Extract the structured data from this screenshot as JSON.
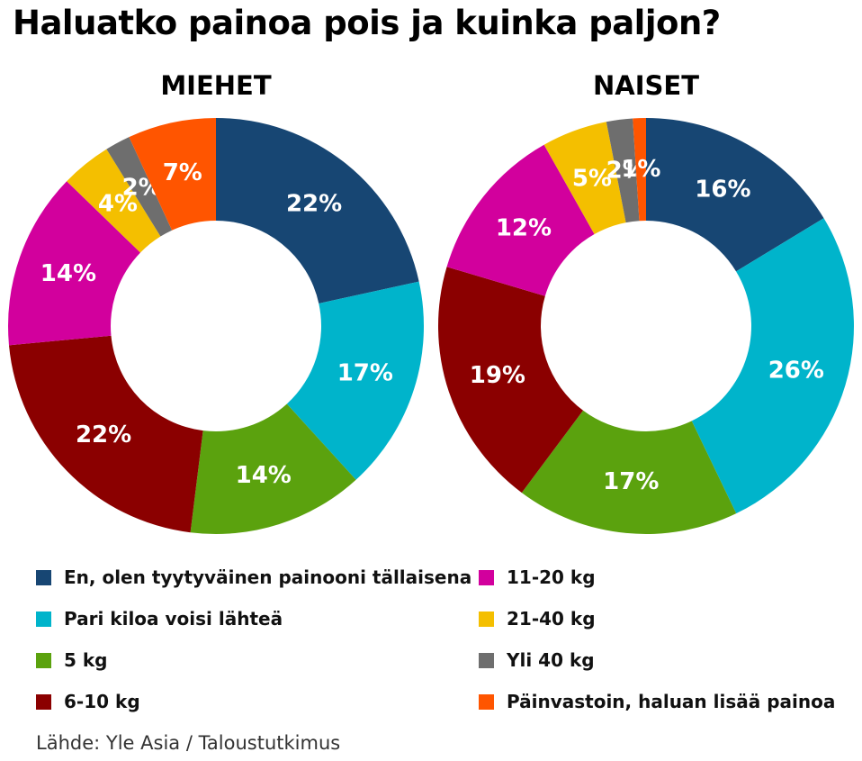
{
  "title": "Haluatko painoa pois ja kuinka paljon?",
  "source": "Lähde: Yle Asia / Taloustutkimus",
  "colors": [
    "#174673",
    "#00b4cb",
    "#5ba20e",
    "#8b0000",
    "#d2009d",
    "#f4bf00",
    "#6e6e6e",
    "#ff5500"
  ],
  "legend": {
    "left": [
      "En, olen tyytyväinen painooni tällaisena",
      "Pari kiloa voisi lähteä",
      "5 kg",
      "6-10 kg"
    ],
    "right": [
      "11-20 kg",
      "21-40 kg",
      "Yli 40 kg",
      "Päinvastoin, haluan lisää painoa"
    ]
  },
  "chart_data": [
    {
      "type": "pie",
      "title": "MIEHET",
      "categories": [
        "En, olen tyytyväinen painooni tällaisena",
        "Pari kiloa voisi lähteä",
        "5 kg",
        "6-10 kg",
        "11-20 kg",
        "21-40 kg",
        "Yli 40 kg",
        "Päinvastoin, haluan lisää painoa"
      ],
      "values": [
        22,
        17,
        14,
        22,
        14,
        4,
        2,
        7
      ],
      "labels": [
        "22%",
        "17%",
        "14%",
        "22%",
        "14%",
        "4%",
        "2%",
        "7%"
      ],
      "unit": "%"
    },
    {
      "type": "pie",
      "title": "NAISET",
      "categories": [
        "En, olen tyytyväinen painooni tällaisena",
        "Pari kiloa voisi lähteä",
        "5 kg",
        "6-10 kg",
        "11-20 kg",
        "21-40 kg",
        "Yli 40 kg",
        "Päinvastoin, haluan lisää painoa"
      ],
      "values": [
        16,
        26,
        17,
        19,
        12,
        5,
        2,
        1
      ],
      "labels": [
        "16%",
        "26%",
        "17%",
        "19%",
        "12%",
        "5%",
        "2%",
        "1%"
      ],
      "unit": "%"
    }
  ]
}
